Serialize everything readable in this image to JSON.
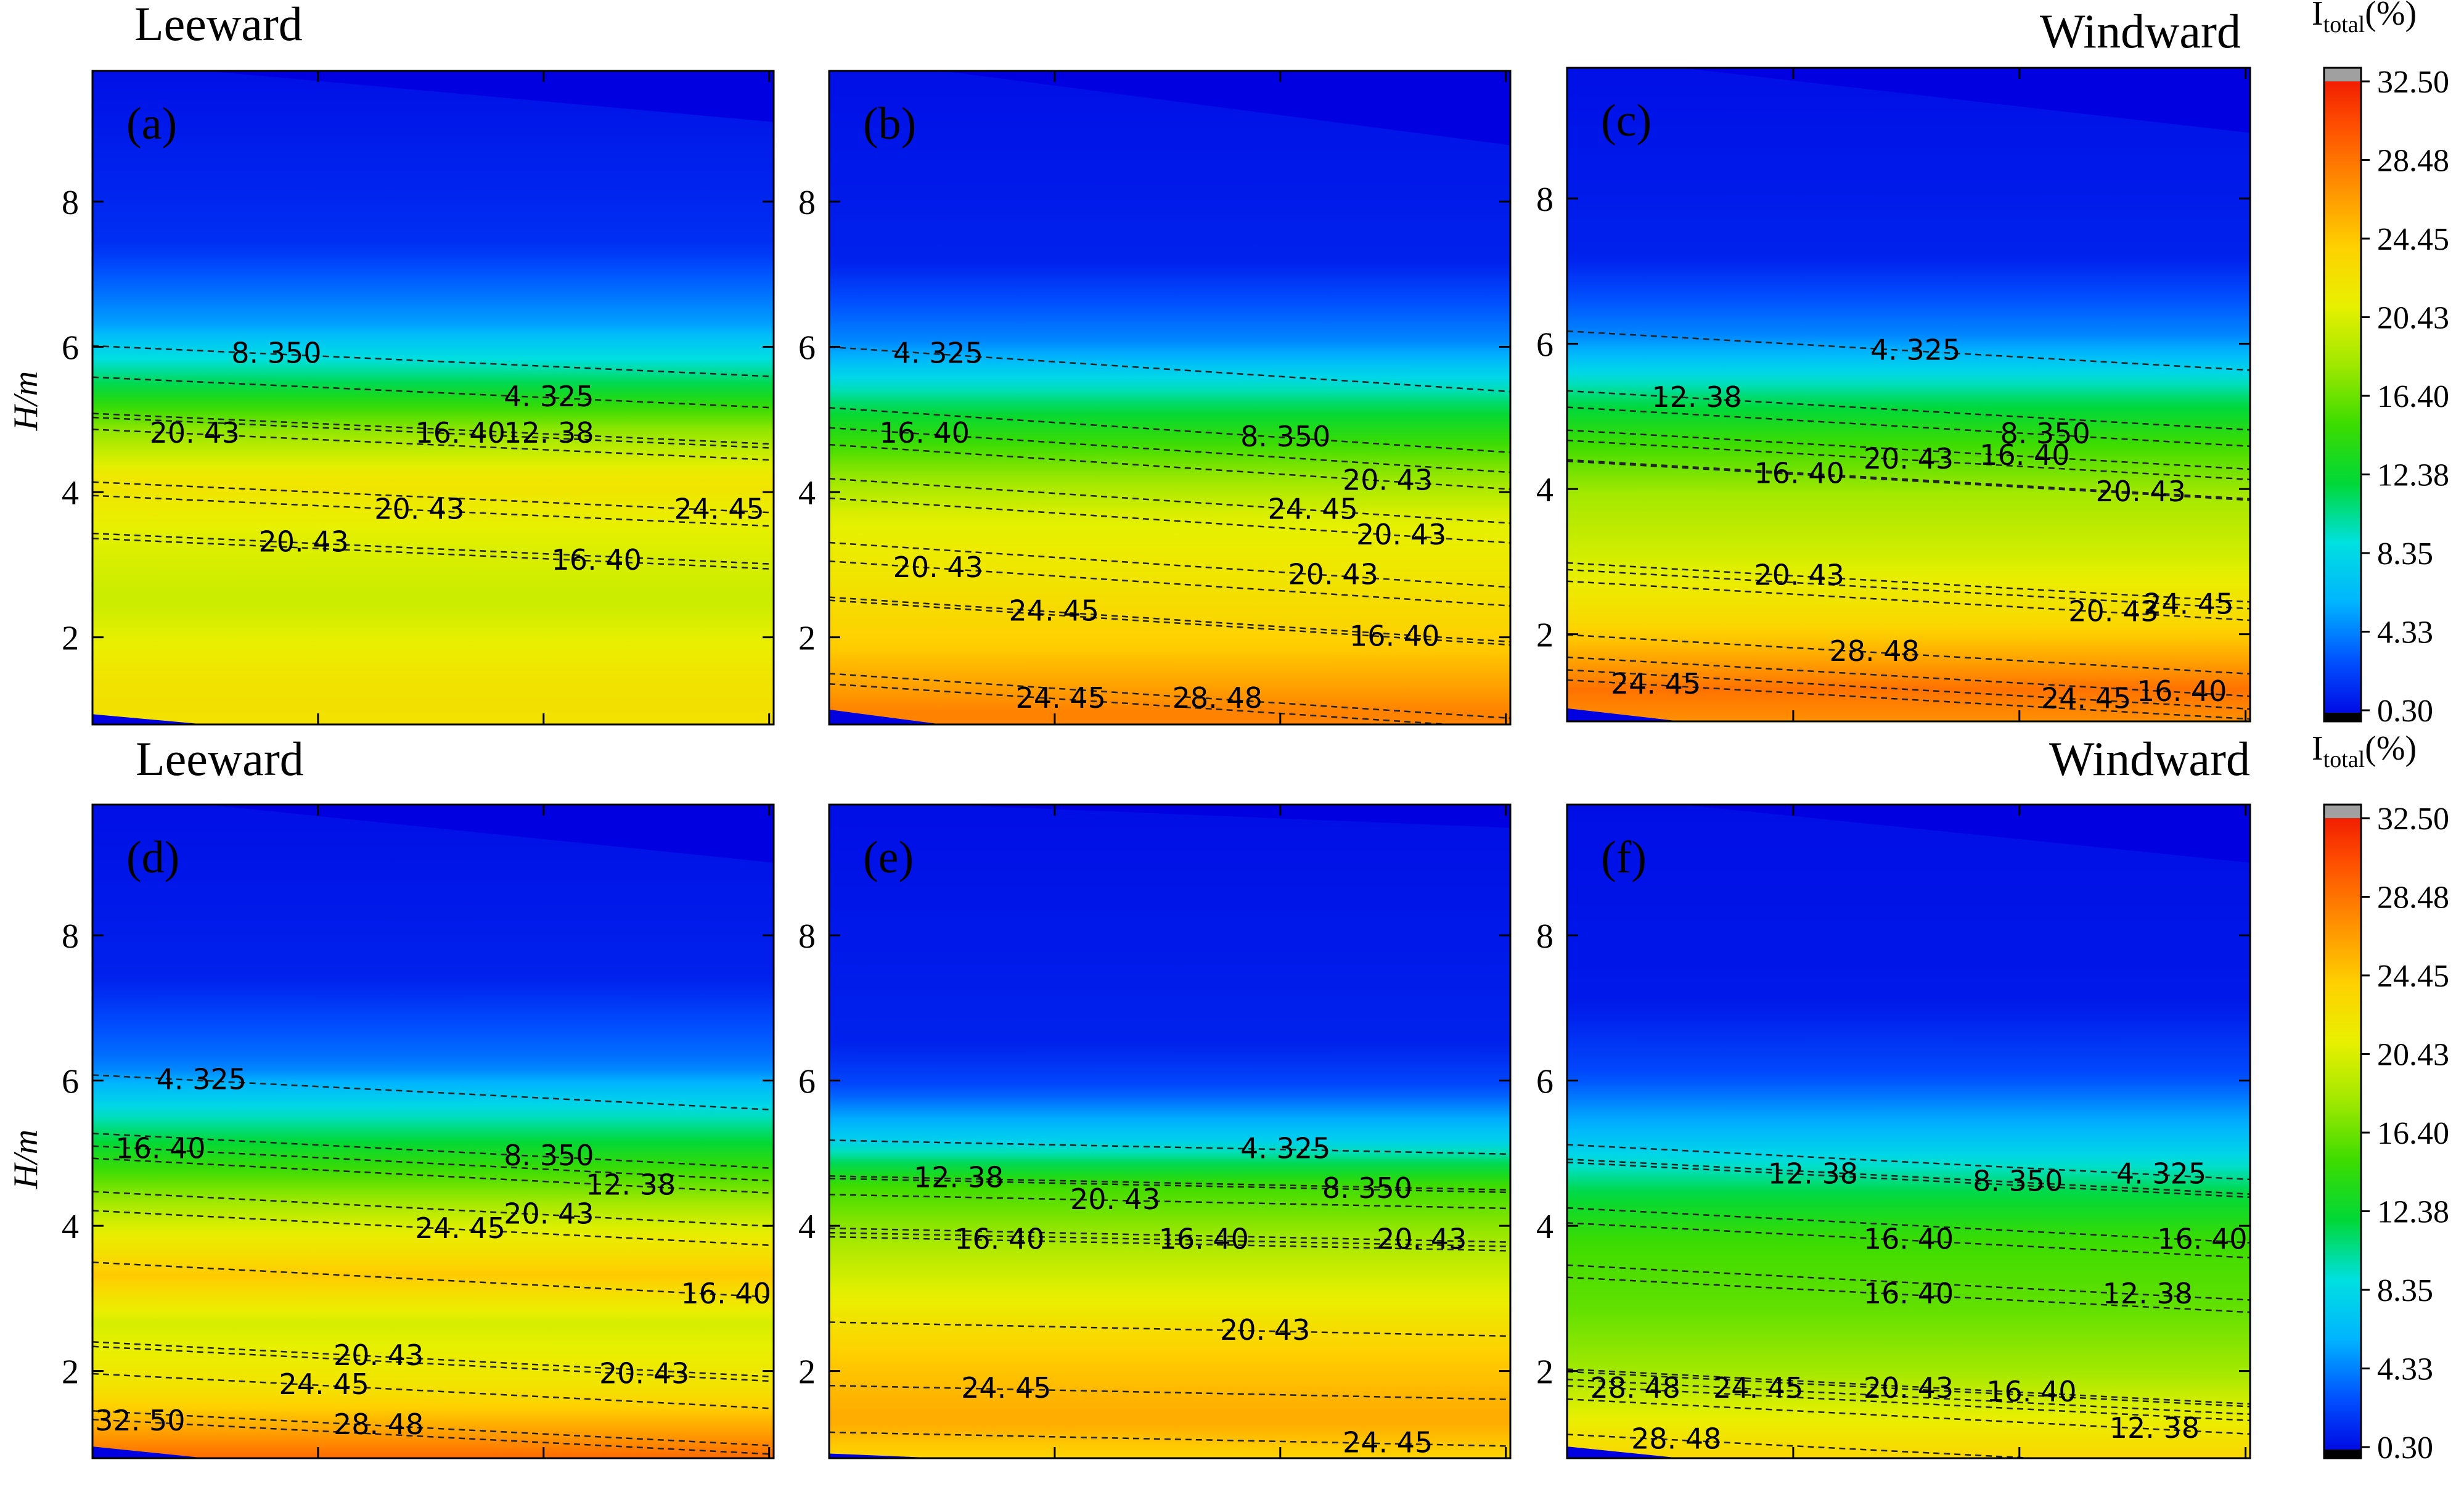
{
  "figure": {
    "row_labels": [
      {
        "left": "Leeward",
        "right": "Windward"
      },
      {
        "left": "Leeward",
        "right": "Windward"
      }
    ],
    "ylabel": "H/m",
    "colorbar_title": "I",
    "colorbar_title_sub": "total",
    "colorbar_title_suffix": "(%)"
  },
  "chart_data": {
    "type": "contour",
    "y_range": [
      0.8,
      9.8
    ],
    "y_ticks": [
      2,
      4,
      6,
      8
    ],
    "colorbar": {
      "min": 0.3,
      "max": 32.5,
      "tick_labels": [
        "32.50",
        "28.48",
        "24.45",
        "20.43",
        "16.40",
        "12.38",
        "8.35",
        "4.33",
        "0.30"
      ],
      "tick_values": [
        32.5,
        28.48,
        24.45,
        20.43,
        16.4,
        12.38,
        8.35,
        4.33,
        0.3
      ],
      "colors": [
        "#0000e0",
        "#0050ff",
        "#00b4ff",
        "#00e0e0",
        "#00d838",
        "#3cdc00",
        "#a0e800",
        "#e8f000",
        "#ffd000",
        "#ff9000",
        "#ff5000",
        "#ee1000",
        "#a0a0a0"
      ]
    },
    "panels": [
      {
        "label": "(a)",
        "profile": [
          [
            0.8,
            22.5
          ],
          [
            2.0,
            22.0
          ],
          [
            3.0,
            19.5
          ],
          [
            3.8,
            20.5
          ],
          [
            4.5,
            22.0
          ],
          [
            5.2,
            17.0
          ],
          [
            5.8,
            11.0
          ],
          [
            6.5,
            5.5
          ],
          [
            7.5,
            2.0
          ],
          [
            9.8,
            0.8
          ]
        ],
        "slope": 0.22,
        "contour_labels": [
          {
            "text": "8. 350",
            "x": 0.27,
            "y": 5.9
          },
          {
            "text": "4. 325",
            "x": 0.67,
            "y": 5.3
          },
          {
            "text": "20. 43",
            "x": 0.15,
            "y": 4.8
          },
          {
            "text": "16. 40",
            "x": 0.54,
            "y": 4.8
          },
          {
            "text": "12. 38",
            "x": 0.67,
            "y": 4.8
          },
          {
            "text": "20. 43",
            "x": 0.48,
            "y": 3.75
          },
          {
            "text": "24. 45",
            "x": 0.92,
            "y": 3.75
          },
          {
            "text": "20. 43",
            "x": 0.31,
            "y": 3.3
          },
          {
            "text": "16. 40",
            "x": 0.74,
            "y": 3.05
          }
        ]
      },
      {
        "label": "(b)",
        "profile": [
          [
            0.8,
            18.0
          ],
          [
            1.3,
            26.0
          ],
          [
            1.8,
            27.5
          ],
          [
            2.6,
            24.0
          ],
          [
            3.4,
            22.0
          ],
          [
            4.2,
            20.5
          ],
          [
            4.8,
            17.0
          ],
          [
            5.5,
            12.0
          ],
          [
            6.3,
            5.0
          ],
          [
            7.3,
            1.5
          ],
          [
            9.8,
            0.8
          ]
        ],
        "slope": 0.32,
        "contour_labels": [
          {
            "text": "4. 325",
            "x": 0.16,
            "y": 5.9
          },
          {
            "text": "16. 40",
            "x": 0.14,
            "y": 4.8
          },
          {
            "text": "8. 350",
            "x": 0.67,
            "y": 4.75
          },
          {
            "text": "20. 43",
            "x": 0.82,
            "y": 4.15
          },
          {
            "text": "24. 45",
            "x": 0.71,
            "y": 3.75
          },
          {
            "text": "20. 43",
            "x": 0.84,
            "y": 3.4
          },
          {
            "text": "20. 43",
            "x": 0.16,
            "y": 2.95
          },
          {
            "text": "20. 43",
            "x": 0.74,
            "y": 2.85
          },
          {
            "text": "24. 45",
            "x": 0.33,
            "y": 2.35
          },
          {
            "text": "16. 40",
            "x": 0.83,
            "y": 2.0
          },
          {
            "text": "24. 45",
            "x": 0.34,
            "y": 1.15
          },
          {
            "text": "28. 48",
            "x": 0.57,
            "y": 1.15
          }
        ]
      },
      {
        "label": "(c)",
        "profile": [
          [
            0.8,
            20.0
          ],
          [
            1.4,
            26.0
          ],
          [
            2.0,
            28.0
          ],
          [
            2.8,
            23.0
          ],
          [
            3.6,
            20.0
          ],
          [
            4.4,
            18.0
          ],
          [
            5.0,
            15.0
          ],
          [
            5.6,
            11.0
          ],
          [
            6.3,
            5.0
          ],
          [
            7.3,
            1.5
          ],
          [
            9.8,
            0.8
          ]
        ],
        "slope": 0.28,
        "contour_labels": [
          {
            "text": "12. 38",
            "x": 0.19,
            "y": 5.25
          },
          {
            "text": "4. 325",
            "x": 0.51,
            "y": 5.9
          },
          {
            "text": "8. 350",
            "x": 0.7,
            "y": 4.75
          },
          {
            "text": "20. 43",
            "x": 0.5,
            "y": 4.4
          },
          {
            "text": "16. 40",
            "x": 0.67,
            "y": 4.45
          },
          {
            "text": "16. 40",
            "x": 0.34,
            "y": 4.2
          },
          {
            "text": "20. 43",
            "x": 0.84,
            "y": 3.95
          },
          {
            "text": "20. 43",
            "x": 0.34,
            "y": 2.8
          },
          {
            "text": "20. 43",
            "x": 0.8,
            "y": 2.3
          },
          {
            "text": "24. 45",
            "x": 0.91,
            "y": 2.4
          },
          {
            "text": "28. 48",
            "x": 0.45,
            "y": 1.75
          },
          {
            "text": "24. 45",
            "x": 0.13,
            "y": 1.3
          },
          {
            "text": "24. 45",
            "x": 0.76,
            "y": 1.1
          },
          {
            "text": "16. 40",
            "x": 0.9,
            "y": 1.2
          }
        ]
      },
      {
        "label": "(d)",
        "profile": [
          [
            0.8,
            33.0
          ],
          [
            1.2,
            31.0
          ],
          [
            1.7,
            27.0
          ],
          [
            2.4,
            22.0
          ],
          [
            3.2,
            20.0
          ],
          [
            3.8,
            24.0
          ],
          [
            4.3,
            21.0
          ],
          [
            4.9,
            16.5
          ],
          [
            5.6,
            11.0
          ],
          [
            6.4,
            4.5
          ],
          [
            7.5,
            1.5
          ],
          [
            9.8,
            0.8
          ]
        ],
        "slope": 0.25,
        "contour_labels": [
          {
            "text": "4. 325",
            "x": 0.16,
            "y": 6.0
          },
          {
            "text": "8. 350",
            "x": 0.67,
            "y": 4.95
          },
          {
            "text": "16. 40",
            "x": 0.1,
            "y": 5.05
          },
          {
            "text": "12. 38",
            "x": 0.79,
            "y": 4.55
          },
          {
            "text": "24. 45",
            "x": 0.54,
            "y": 3.95
          },
          {
            "text": "20. 43",
            "x": 0.67,
            "y": 4.15
          },
          {
            "text": "16. 40",
            "x": 0.93,
            "y": 3.05
          },
          {
            "text": "20. 43",
            "x": 0.42,
            "y": 2.2
          },
          {
            "text": "20. 43",
            "x": 0.81,
            "y": 1.95
          },
          {
            "text": "24. 45",
            "x": 0.34,
            "y": 1.8
          },
          {
            "text": "28. 48",
            "x": 0.42,
            "y": 1.25
          },
          {
            "text": "32. 50",
            "x": 0.07,
            "y": 1.3
          }
        ]
      },
      {
        "label": "(e)",
        "profile": [
          [
            0.8,
            22.0
          ],
          [
            1.6,
            25.5
          ],
          [
            2.4,
            24.0
          ],
          [
            3.2,
            21.0
          ],
          [
            4.0,
            18.0
          ],
          [
            4.7,
            15.0
          ],
          [
            5.3,
            8.0
          ],
          [
            6.0,
            3.0
          ],
          [
            6.6,
            1.5
          ],
          [
            9.8,
            0.8
          ]
        ],
        "slope": 0.1,
        "contour_labels": [
          {
            "text": "12. 38",
            "x": 0.19,
            "y": 4.65
          },
          {
            "text": "4. 325",
            "x": 0.67,
            "y": 5.05
          },
          {
            "text": "8. 350",
            "x": 0.79,
            "y": 4.5
          },
          {
            "text": "20. 43",
            "x": 0.42,
            "y": 4.35
          },
          {
            "text": "16. 40",
            "x": 0.25,
            "y": 3.8
          },
          {
            "text": "16. 40",
            "x": 0.55,
            "y": 3.8
          },
          {
            "text": "20. 43",
            "x": 0.87,
            "y": 3.8
          },
          {
            "text": "20. 43",
            "x": 0.64,
            "y": 2.55
          },
          {
            "text": "24. 45",
            "x": 0.26,
            "y": 1.75
          },
          {
            "text": "24. 45",
            "x": 0.82,
            "y": 1.0
          }
        ]
      },
      {
        "label": "(f)",
        "profile": [
          [
            0.8,
            30.0
          ],
          [
            1.3,
            24.0
          ],
          [
            1.8,
            22.0
          ],
          [
            2.6,
            18.0
          ],
          [
            3.4,
            16.0
          ],
          [
            4.2,
            15.0
          ],
          [
            4.8,
            12.0
          ],
          [
            5.5,
            7.0
          ],
          [
            6.3,
            3.0
          ],
          [
            7.2,
            1.2
          ],
          [
            9.8,
            0.8
          ]
        ],
        "slope": 0.25,
        "contour_labels": [
          {
            "text": "12. 38",
            "x": 0.36,
            "y": 4.7
          },
          {
            "text": "8. 350",
            "x": 0.66,
            "y": 4.6
          },
          {
            "text": "4. 325",
            "x": 0.87,
            "y": 4.7
          },
          {
            "text": "16. 40",
            "x": 0.5,
            "y": 3.8
          },
          {
            "text": "16. 40",
            "x": 0.93,
            "y": 3.8
          },
          {
            "text": "16. 40",
            "x": 0.5,
            "y": 3.05
          },
          {
            "text": "12. 38",
            "x": 0.85,
            "y": 3.05
          },
          {
            "text": "28. 48",
            "x": 0.1,
            "y": 1.75
          },
          {
            "text": "24. 45",
            "x": 0.28,
            "y": 1.75
          },
          {
            "text": "20. 43",
            "x": 0.5,
            "y": 1.75
          },
          {
            "text": "16. 40",
            "x": 0.68,
            "y": 1.7
          },
          {
            "text": "12. 38",
            "x": 0.86,
            "y": 1.2
          },
          {
            "text": "28. 48",
            "x": 0.16,
            "y": 1.05
          }
        ]
      }
    ]
  }
}
